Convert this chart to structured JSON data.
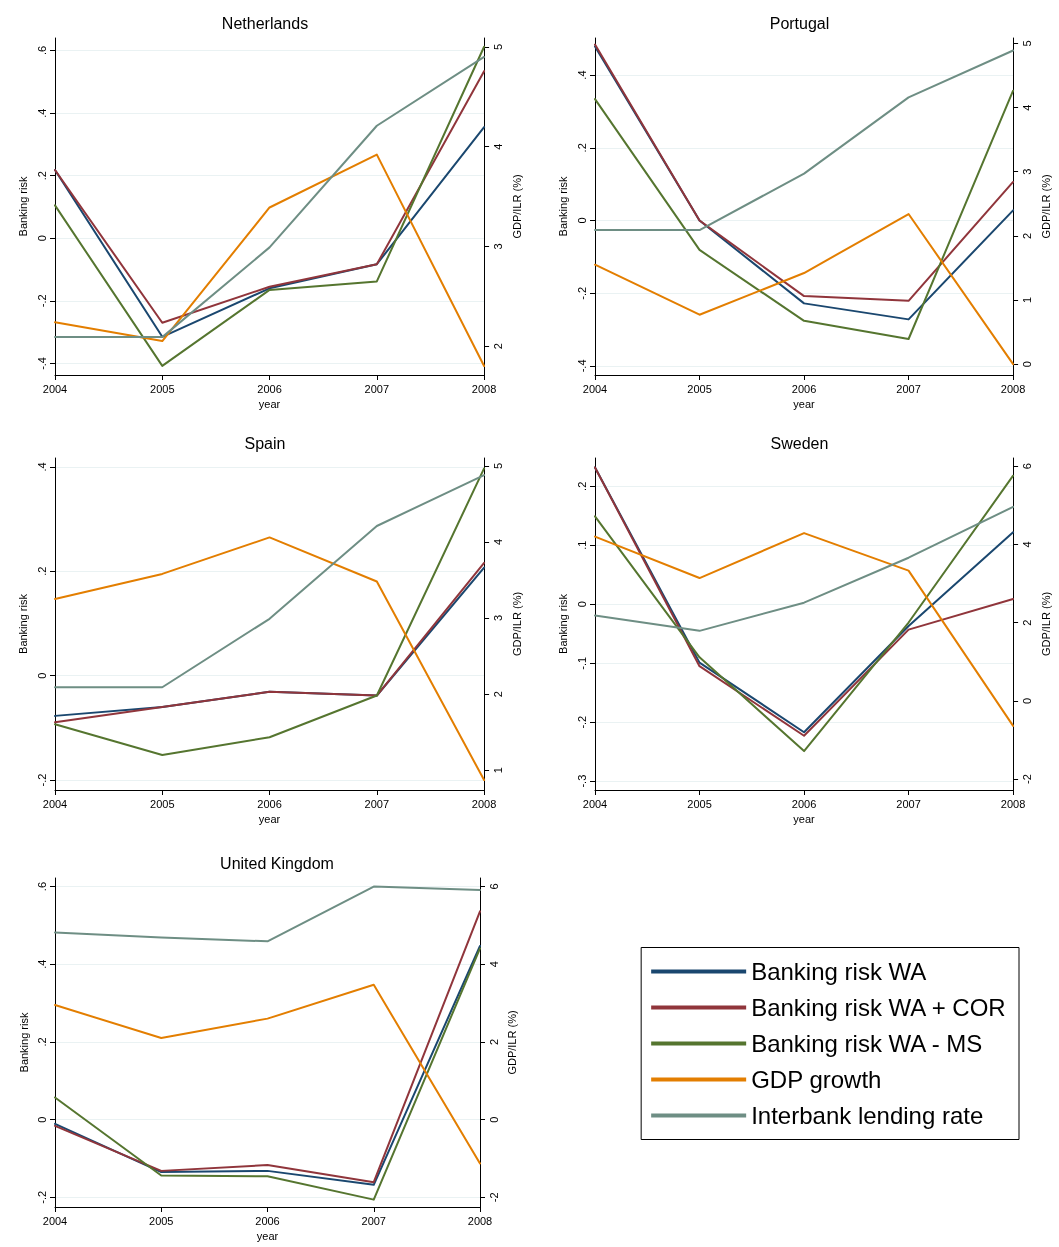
{
  "chart_data": [
    {
      "type": "line",
      "title": "Netherlands",
      "xlabel": "year",
      "ylabel": "Banking risk",
      "y2label": "GDP/ILR (%)",
      "x": [
        2004,
        2005,
        2006,
        2007,
        2008
      ],
      "xlim": [
        2004,
        2008
      ],
      "xticks": [
        2004,
        2005,
        2006,
        2007,
        2008
      ],
      "ylim": [
        -0.437,
        0.64
      ],
      "yticks": [
        {
          "value": -0.4,
          "label": "-.4"
        },
        {
          "value": -0.2,
          "label": "-.2"
        },
        {
          "value": 0,
          "label": "0"
        },
        {
          "value": 0.2,
          "label": ".2"
        },
        {
          "value": 0.4,
          "label": ".4"
        },
        {
          "value": 0.6,
          "label": ".6"
        }
      ],
      "y2lim": [
        1.71,
        5.09
      ],
      "y2ticks": [
        2,
        3,
        4,
        5
      ],
      "grid": "y",
      "legend": false,
      "marker": "none",
      "line_style": "solid",
      "series": [
        {
          "color": "#1a476f",
          "values": [
            0.218,
            -0.315,
            -0.16,
            -0.083,
            0.355
          ]
        },
        {
          "color": "#90353b",
          "values": [
            0.218,
            -0.27,
            -0.155,
            -0.083,
            0.534
          ]
        },
        {
          "color": "#55752f",
          "values": [
            0.105,
            -0.408,
            -0.165,
            -0.138,
            0.612
          ]
        },
        {
          "color": "#e37e00",
          "axis": "y2",
          "values": [
            2.24,
            2.05,
            3.39,
            3.92,
            1.8
          ]
        },
        {
          "color": "#6e8e84",
          "axis": "y2",
          "values": [
            2.09,
            2.09,
            2.99,
            4.21,
            4.9
          ]
        }
      ]
    },
    {
      "type": "line",
      "title": "Portugal",
      "xlabel": "year",
      "ylabel": "Banking risk",
      "y2label": "GDP/ILR (%)",
      "x": [
        2004,
        2005,
        2006,
        2007,
        2008
      ],
      "xlim": [
        2004,
        2008
      ],
      "xticks": [
        2004,
        2005,
        2006,
        2007,
        2008
      ],
      "ylim": [
        -0.425,
        0.502
      ],
      "yticks": [
        {
          "value": -0.4,
          "label": "-.4"
        },
        {
          "value": -0.2,
          "label": "-.2"
        },
        {
          "value": 0,
          "label": "0"
        },
        {
          "value": 0.2,
          "label": ".2"
        },
        {
          "value": 0.4,
          "label": ".4"
        }
      ],
      "y2lim": [
        -0.17,
        5.085
      ],
      "y2ticks": [
        0,
        1,
        2,
        3,
        4,
        5
      ],
      "grid": "y",
      "legend": false,
      "marker": "none",
      "line_style": "solid",
      "series": [
        {
          "color": "#1a476f",
          "values": [
            0.479,
            0,
            -0.228,
            -0.272,
            0.028
          ]
        },
        {
          "color": "#90353b",
          "values": [
            0.484,
            0,
            -0.208,
            -0.221,
            0.106
          ]
        },
        {
          "color": "#55752f",
          "values": [
            0.334,
            -0.081,
            -0.276,
            -0.326,
            0.357
          ]
        },
        {
          "color": "#e37e00",
          "axis": "y2",
          "values": [
            1.55,
            0.77,
            1.42,
            2.34,
            0
          ]
        },
        {
          "color": "#6e8e84",
          "axis": "y2",
          "values": [
            2.09,
            2.09,
            2.97,
            4.16,
            4.89
          ]
        }
      ]
    },
    {
      "type": "line",
      "title": "Spain",
      "xlabel": "year",
      "ylabel": "Banking risk",
      "y2label": "GDP/ILR (%)",
      "x": [
        2004,
        2005,
        2006,
        2007,
        2008
      ],
      "xlim": [
        2004,
        2008
      ],
      "xticks": [
        2004,
        2005,
        2006,
        2007,
        2008
      ],
      "ylim": [
        -0.219,
        0.417
      ],
      "yticks": [
        {
          "value": -0.2,
          "label": "-.2"
        },
        {
          "value": 0,
          "label": "0"
        },
        {
          "value": 0.2,
          "label": ".2"
        },
        {
          "value": 0.4,
          "label": ".4"
        }
      ],
      "y2lim": [
        0.739,
        5.104
      ],
      "y2ticks": [
        1,
        2,
        3,
        4,
        5
      ],
      "grid": "y",
      "legend": false,
      "marker": "none",
      "line_style": "solid",
      "series": [
        {
          "color": "#1a476f",
          "values": [
            -0.077,
            -0.06,
            -0.031,
            -0.038,
            0.207
          ]
        },
        {
          "color": "#90353b",
          "values": [
            -0.089,
            -0.06,
            -0.031,
            -0.038,
            0.216
          ]
        },
        {
          "color": "#55752f",
          "values": [
            -0.093,
            -0.152,
            -0.118,
            -0.038,
            0.397
          ]
        },
        {
          "color": "#e37e00",
          "axis": "y2",
          "values": [
            3.25,
            3.58,
            4.06,
            3.48,
            0.87
          ]
        },
        {
          "color": "#6e8e84",
          "axis": "y2",
          "values": [
            2.09,
            2.09,
            2.99,
            4.21,
            4.88
          ]
        }
      ]
    },
    {
      "type": "line",
      "title": "Sweden",
      "xlabel": "year",
      "ylabel": "Banking risk",
      "y2label": "GDP/ILR (%)",
      "x": [
        2004,
        2005,
        2006,
        2007,
        2008
      ],
      "xlim": [
        2004,
        2008
      ],
      "xticks": [
        2004,
        2005,
        2006,
        2007,
        2008
      ],
      "ylim": [
        -0.315,
        0.248
      ],
      "yticks": [
        {
          "value": -0.3,
          "label": "-.3"
        },
        {
          "value": -0.2,
          "label": "-.2"
        },
        {
          "value": -0.1,
          "label": "-.1"
        },
        {
          "value": 0,
          "label": "0"
        },
        {
          "value": 0.1,
          "label": ".1"
        },
        {
          "value": 0.2,
          "label": ".2"
        }
      ],
      "y2lim": [
        -2.28,
        6.21
      ],
      "y2ticks": [
        -2,
        0,
        2,
        4,
        6
      ],
      "grid": "y",
      "legend": false,
      "marker": "none",
      "line_style": "solid",
      "series": [
        {
          "color": "#1a476f",
          "values": [
            0.232,
            -0.099,
            -0.217,
            -0.037,
            0.122
          ]
        },
        {
          "color": "#90353b",
          "values": [
            0.232,
            -0.105,
            -0.223,
            -0.043,
            0.009
          ]
        },
        {
          "color": "#55752f",
          "values": [
            0.149,
            -0.09,
            -0.249,
            -0.031,
            0.218
          ]
        },
        {
          "color": "#e37e00",
          "axis": "y2",
          "values": [
            4.2,
            3.14,
            4.29,
            3.33,
            -0.64
          ]
        },
        {
          "color": "#6e8e84",
          "axis": "y2",
          "values": [
            2.18,
            1.79,
            2.51,
            3.66,
            4.96
          ]
        }
      ]
    },
    {
      "type": "line",
      "title": "United Kingdom",
      "xlabel": "year",
      "ylabel": "Banking risk",
      "y2label": "GDP/ILR (%)",
      "x": [
        2004,
        2005,
        2006,
        2007,
        2008
      ],
      "xlim": [
        2004,
        2008
      ],
      "xticks": [
        2004,
        2005,
        2006,
        2007,
        2008
      ],
      "ylim": [
        -0.225,
        0.622
      ],
      "yticks": [
        {
          "value": -0.2,
          "label": "-.2"
        },
        {
          "value": 0,
          "label": "0"
        },
        {
          "value": 0.2,
          "label": ".2"
        },
        {
          "value": 0.4,
          "label": ".4"
        },
        {
          "value": 0.6,
          "label": ".6"
        }
      ],
      "y2lim": [
        -2.25,
        6.22
      ],
      "y2ticks": [
        -2,
        0,
        2,
        4,
        6
      ],
      "grid": "y",
      "legend": "right",
      "marker": "none",
      "line_style": "solid",
      "series": [
        {
          "name": "Banking risk WA",
          "color": "#1a476f",
          "values": [
            -0.011,
            -0.135,
            -0.132,
            -0.168,
            0.447
          ]
        },
        {
          "name": "Banking risk WA + COR",
          "color": "#90353b",
          "values": [
            -0.016,
            -0.132,
            -0.117,
            -0.161,
            0.536
          ]
        },
        {
          "name": "Banking risk WA - MS",
          "color": "#55752f",
          "values": [
            0.057,
            -0.144,
            -0.146,
            -0.206,
            0.441
          ]
        },
        {
          "name": "GDP growth",
          "color": "#e37e00",
          "axis": "y2",
          "values": [
            2.95,
            2.1,
            2.6,
            3.47,
            -1.13
          ]
        },
        {
          "name": "Interbank lending rate",
          "color": "#6e8e84",
          "axis": "y2",
          "values": [
            4.82,
            4.69,
            4.59,
            6.0,
            5.91
          ]
        }
      ]
    }
  ]
}
